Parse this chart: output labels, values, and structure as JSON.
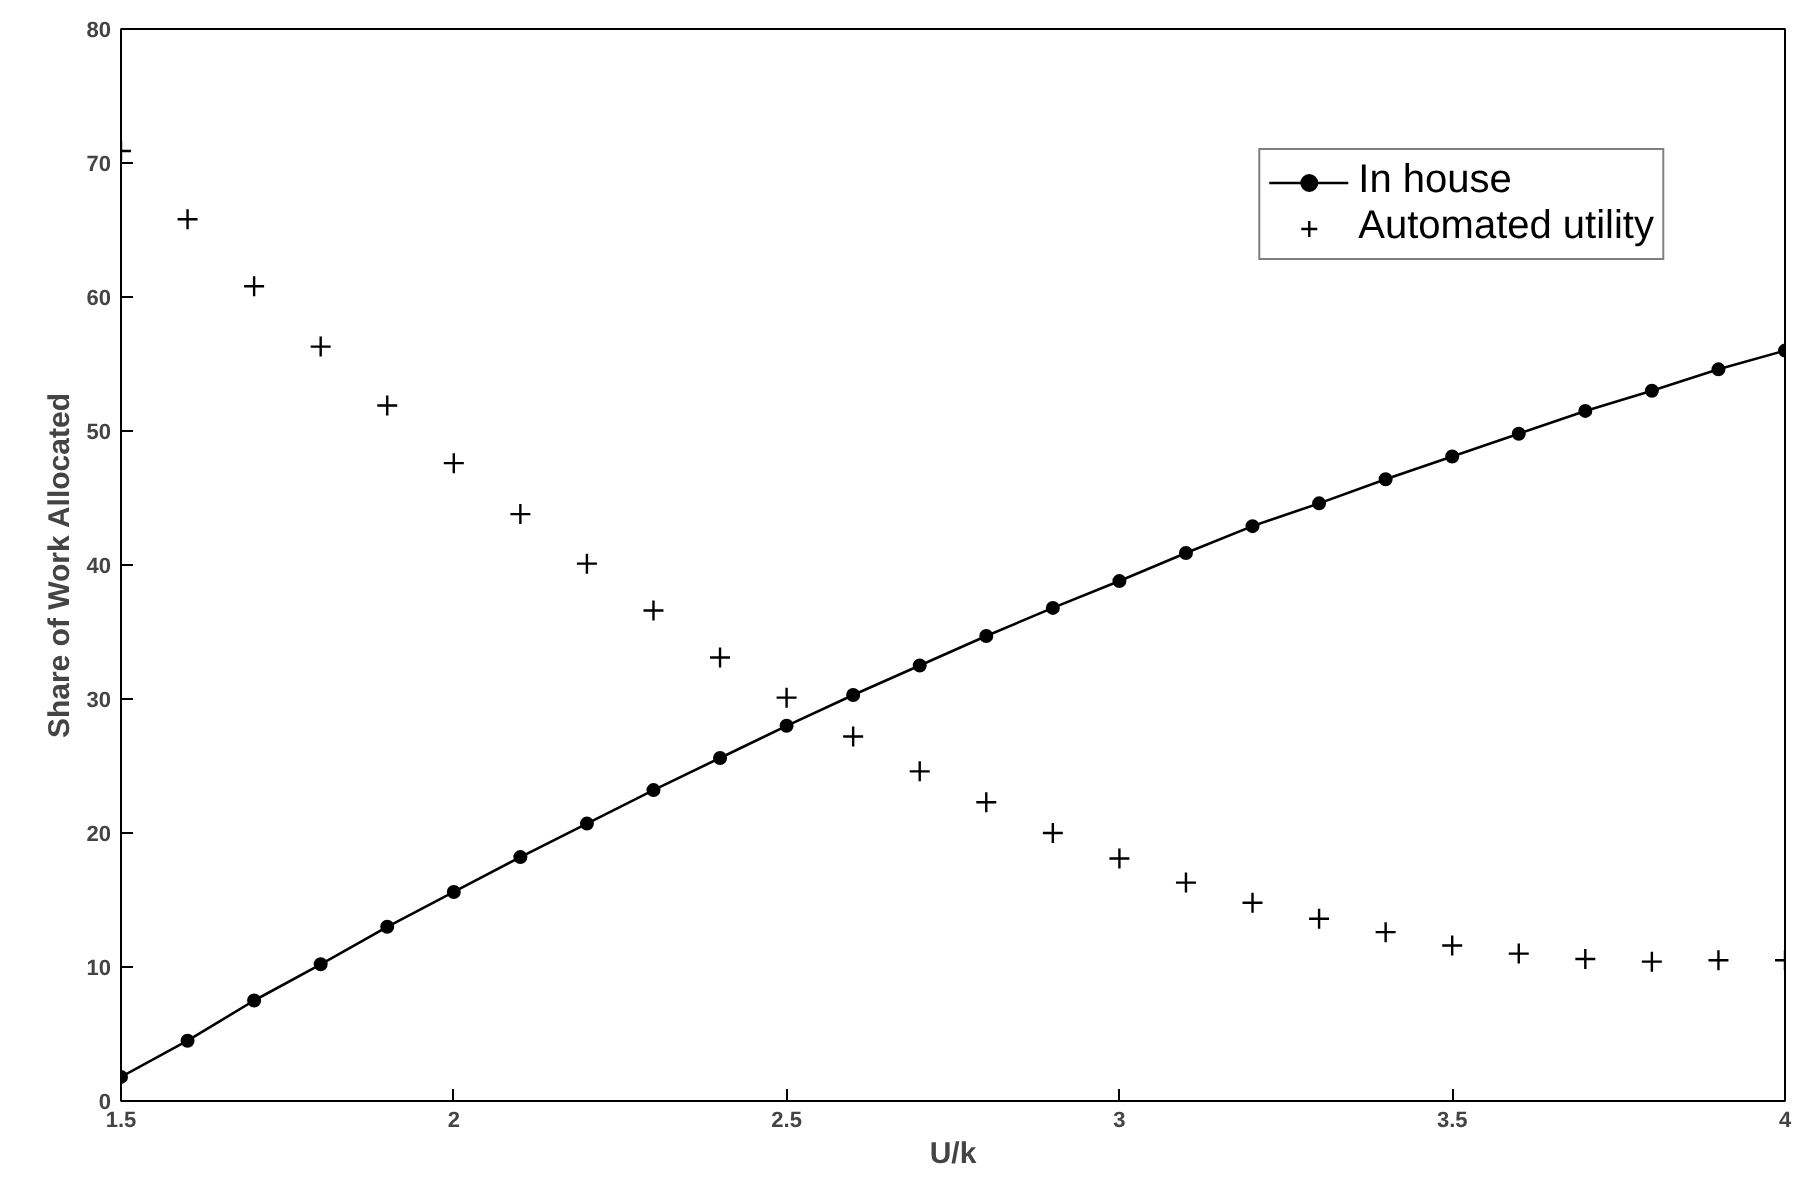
{
  "chart_data": {
    "type": "line",
    "xlabel": "U/k",
    "ylabel": "Share of Work Allocated",
    "x": [
      1.5,
      1.6,
      1.7,
      1.8,
      1.9,
      2.0,
      2.1,
      2.2,
      2.3,
      2.4,
      2.5,
      2.6,
      2.7,
      2.8,
      2.9,
      3.0,
      3.1,
      3.2,
      3.3,
      3.4,
      3.5,
      3.6,
      3.7,
      3.8,
      3.9,
      4.0
    ],
    "series": [
      {
        "name": "In house",
        "color": "#000000",
        "marker": "circle",
        "values": [
          1.8,
          4.5,
          7.5,
          10.2,
          13,
          15.6,
          18.2,
          20.7,
          23.2,
          25.6,
          28,
          30.3,
          32.5,
          34.7,
          36.8,
          38.8,
          40.9,
          42.9,
          44.6,
          46.4,
          48.1,
          49.8,
          51.5,
          53,
          54.6,
          56
        ]
      },
      {
        "name": "Automated utility",
        "color": "#000000",
        "type": "scatter",
        "marker": "cross",
        "values": [
          70.9,
          65.8,
          60.8,
          56.3,
          51.9,
          47.6,
          43.8,
          40.1,
          36.6,
          33.1,
          30.1,
          27.2,
          24.6,
          22.3,
          20,
          18.1,
          16.3,
          14.8,
          13.6,
          12.6,
          11.6,
          11,
          10.6,
          10.4,
          10.5,
          10.5
        ]
      }
    ],
    "xlim": [
      1.5,
      4
    ],
    "xticks": [
      1.5,
      2,
      2.5,
      3,
      3.5,
      4
    ],
    "ylim": [
      0,
      80
    ],
    "yticks": [
      0,
      10,
      20,
      30,
      40,
      50,
      60,
      70,
      80
    ],
    "grid": false,
    "legend": "top right"
  }
}
